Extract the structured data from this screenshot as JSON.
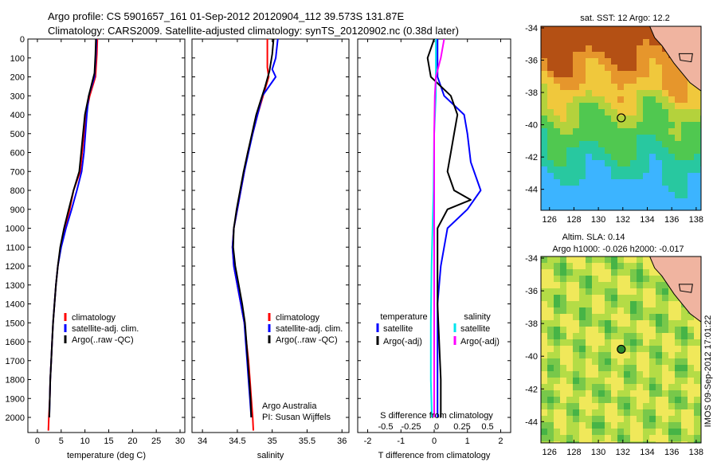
{
  "title_line1": "Argo profile: CS 5901657_161 01-Sep-2012 20120904_112 39.573S 131.87E",
  "title_line2": "Climatology: CARS2009. Satellite-adjusted climatology: synTS_20120902.nc (0.38d later)",
  "side_stamp": "IMOS 09-Sep-2012 17:01:22",
  "chart_data": [
    {
      "type": "line",
      "xlabel": "temperature (deg C)",
      "ylabel": "",
      "xlim": [
        -2,
        31
      ],
      "ylim": [
        2080,
        0
      ],
      "x_ticks": [
        0,
        5,
        10,
        15,
        20,
        25,
        30
      ],
      "y_ticks": [
        0,
        100,
        200,
        300,
        400,
        500,
        600,
        700,
        800,
        900,
        1000,
        1100,
        1200,
        1300,
        1400,
        1500,
        1600,
        1700,
        1800,
        1900,
        2000
      ],
      "legend": [
        "climatology",
        "satellite-adj. clim.",
        "Argo(..raw -QC)"
      ],
      "legend_placement": "lower-right",
      "series": [
        {
          "name": "climatology",
          "color": "#ff0000",
          "points": [
            [
              12.6,
              0
            ],
            [
              12.5,
              80
            ],
            [
              12.2,
              200
            ],
            [
              11,
              300
            ],
            [
              10.2,
              400
            ],
            [
              9.8,
              500
            ],
            [
              9.4,
              600
            ],
            [
              9,
              700
            ],
            [
              7.6,
              800
            ],
            [
              6.8,
              900
            ],
            [
              5.8,
              1000
            ],
            [
              4.9,
              1100
            ],
            [
              4.3,
              1200
            ],
            [
              3.9,
              1300
            ],
            [
              3.6,
              1400
            ],
            [
              3.3,
              1500
            ],
            [
              3.1,
              1600
            ],
            [
              2.9,
              1700
            ],
            [
              2.7,
              1800
            ],
            [
              2.6,
              1900
            ],
            [
              2.4,
              2000
            ],
            [
              2.3,
              2070
            ]
          ]
        },
        {
          "name": "satellite-adj. clim.",
          "color": "#0000ff",
          "points": [
            [
              12.4,
              0
            ],
            [
              12.3,
              80
            ],
            [
              12,
              200
            ],
            [
              10.8,
              300
            ],
            [
              10.4,
              400
            ],
            [
              10.1,
              500
            ],
            [
              9.8,
              600
            ],
            [
              9.3,
              700
            ],
            [
              8.3,
              800
            ],
            [
              7.2,
              900
            ],
            [
              6,
              1000
            ],
            [
              5,
              1100
            ],
            [
              4.3,
              1200
            ],
            [
              3.9,
              1300
            ],
            [
              3.6,
              1400
            ],
            [
              3.3,
              1500
            ],
            [
              3.1,
              1600
            ],
            [
              2.9,
              1700
            ],
            [
              2.7,
              1800
            ],
            [
              2.6,
              1900
            ],
            [
              2.5,
              2000
            ]
          ]
        },
        {
          "name": "Argo(..raw -QC)",
          "color": "#000000",
          "points": [
            [
              12.3,
              0
            ],
            [
              12.2,
              80
            ],
            [
              12,
              180
            ],
            [
              10.8,
              300
            ],
            [
              10,
              400
            ],
            [
              9.6,
              500
            ],
            [
              9.2,
              600
            ],
            [
              8.8,
              700
            ],
            [
              7.6,
              800
            ],
            [
              6.6,
              900
            ],
            [
              5.6,
              1000
            ],
            [
              4.8,
              1100
            ],
            [
              4.3,
              1200
            ],
            [
              3.9,
              1300
            ],
            [
              3.6,
              1400
            ],
            [
              3.3,
              1500
            ],
            [
              3.1,
              1600
            ],
            [
              2.9,
              1700
            ],
            [
              2.7,
              1800
            ],
            [
              2.6,
              1900
            ],
            [
              2.5,
              2000
            ]
          ]
        }
      ]
    },
    {
      "type": "line",
      "xlabel": "salinity",
      "xlim": [
        33.85,
        36.1
      ],
      "ylim": [
        2080,
        0
      ],
      "x_ticks": [
        34,
        34.5,
        35,
        35.5,
        36
      ],
      "legend": [
        "climatology",
        "satellite-adj. clim.",
        "Argo(..raw -QC)"
      ],
      "legend_placement": "lower-right",
      "annotation": [
        "Argo Australia",
        "PI: Susan Wijffels"
      ],
      "series": [
        {
          "name": "climatology",
          "color": "#ff0000",
          "points": [
            [
              34.93,
              0
            ],
            [
              34.93,
              150
            ],
            [
              34.95,
              200
            ],
            [
              34.87,
              300
            ],
            [
              34.79,
              400
            ],
            [
              34.72,
              500
            ],
            [
              34.65,
              600
            ],
            [
              34.6,
              700
            ],
            [
              34.55,
              800
            ],
            [
              34.5,
              900
            ],
            [
              34.45,
              1000
            ],
            [
              34.43,
              1100
            ],
            [
              34.45,
              1200
            ],
            [
              34.5,
              1300
            ],
            [
              34.55,
              1400
            ],
            [
              34.6,
              1500
            ],
            [
              34.63,
              1600
            ],
            [
              34.66,
              1700
            ],
            [
              34.68,
              1800
            ],
            [
              34.7,
              1900
            ],
            [
              34.72,
              2000
            ],
            [
              34.73,
              2070
            ]
          ]
        },
        {
          "name": "satellite-adj. clim.",
          "color": "#0000ff",
          "points": [
            [
              35.08,
              0
            ],
            [
              35.05,
              100
            ],
            [
              35,
              160
            ],
            [
              35.05,
              200
            ],
            [
              34.86,
              300
            ],
            [
              34.79,
              400
            ],
            [
              34.72,
              500
            ],
            [
              34.66,
              600
            ],
            [
              34.6,
              700
            ],
            [
              34.55,
              800
            ],
            [
              34.5,
              900
            ],
            [
              34.45,
              1000
            ],
            [
              34.43,
              1100
            ],
            [
              34.45,
              1200
            ],
            [
              34.5,
              1300
            ],
            [
              34.55,
              1400
            ],
            [
              34.6,
              1500
            ],
            [
              34.62,
              1600
            ],
            [
              34.64,
              1700
            ],
            [
              34.66,
              1800
            ],
            [
              34.68,
              1900
            ],
            [
              34.7,
              2000
            ]
          ]
        },
        {
          "name": "Argo(..raw -QC)",
          "color": "#000000",
          "points": [
            [
              35.02,
              0
            ],
            [
              35.0,
              80
            ],
            [
              34.96,
              170
            ],
            [
              34.9,
              250
            ],
            [
              34.83,
              330
            ],
            [
              34.77,
              400
            ],
            [
              34.71,
              500
            ],
            [
              34.65,
              600
            ],
            [
              34.59,
              700
            ],
            [
              34.54,
              800
            ],
            [
              34.49,
              900
            ],
            [
              34.45,
              1000
            ],
            [
              34.44,
              1100
            ],
            [
              34.47,
              1200
            ],
            [
              34.52,
              1300
            ],
            [
              34.57,
              1400
            ],
            [
              34.61,
              1500
            ],
            [
              34.63,
              1600
            ],
            [
              34.65,
              1700
            ],
            [
              34.67,
              1800
            ],
            [
              34.69,
              1900
            ],
            [
              34.7,
              2000
            ]
          ]
        }
      ]
    },
    {
      "type": "line",
      "xlabel": "T difference from climatology",
      "xlabel_top": "S difference from climatology",
      "xlim": [
        -2.3,
        2.3
      ],
      "ylim": [
        2080,
        0
      ],
      "x_ticks": [
        -2,
        -1,
        0,
        1,
        2
      ],
      "x_ticks_top": [
        -0.5,
        -0.25,
        0,
        0.25,
        0.5
      ],
      "legend_groups": [
        {
          "header": "temperature",
          "items": [
            {
              "label": "satellite",
              "color": "#0000ff"
            },
            {
              "label": "Argo(-adj)",
              "color": "#000000"
            }
          ]
        },
        {
          "header": "salinity",
          "items": [
            {
              "label": "satellite",
              "color": "#00e5ee"
            },
            {
              "label": "Argo(-adj)",
              "color": "#ff00ff"
            }
          ]
        }
      ],
      "series": [
        {
          "name": "temperature satellite",
          "color": "#0000ff",
          "points": [
            [
              0.1,
              0
            ],
            [
              0.1,
              200
            ],
            [
              0.3,
              300
            ],
            [
              0.9,
              400
            ],
            [
              1,
              500
            ],
            [
              1.1,
              650
            ],
            [
              1.4,
              800
            ],
            [
              1,
              900
            ],
            [
              0.4,
              1000
            ],
            [
              0.2,
              1200
            ],
            [
              0.1,
              1400
            ],
            [
              0.1,
              1800
            ],
            [
              0.1,
              2000
            ]
          ]
        },
        {
          "name": "temperature Argo(-adj)",
          "color": "#000000",
          "points": [
            [
              0,
              0
            ],
            [
              -0.2,
              100
            ],
            [
              -0.1,
              200
            ],
            [
              0.5,
              300
            ],
            [
              0.7,
              400
            ],
            [
              0.6,
              500
            ],
            [
              0.5,
              600
            ],
            [
              0.4,
              700
            ],
            [
              0.6,
              800
            ],
            [
              1.1,
              850
            ],
            [
              0.4,
              900
            ],
            [
              0.1,
              1000
            ],
            [
              0.1,
              1400
            ],
            [
              0.2,
              1800
            ],
            [
              0.2,
              2000
            ]
          ]
        },
        {
          "name": "salinity satellite",
          "color": "#00e5ee",
          "points": [
            [
              0.05,
              0
            ],
            [
              0.05,
              300
            ],
            [
              0,
              500
            ],
            [
              -0.02,
              800
            ],
            [
              -0.05,
              1000
            ],
            [
              -0.08,
              1200
            ],
            [
              -0.1,
              1500
            ],
            [
              -0.1,
              1800
            ],
            [
              -0.07,
              2000
            ]
          ]
        },
        {
          "name": "salinity Argo(-adj)",
          "color": "#ff00ff",
          "points": [
            [
              0.3,
              0
            ],
            [
              0.2,
              100
            ],
            [
              0.05,
              200
            ],
            [
              0.02,
              300
            ],
            [
              0,
              500
            ],
            [
              0,
              800
            ],
            [
              0,
              1100
            ],
            [
              0,
              1500
            ],
            [
              0,
              1800
            ],
            [
              0,
              2000
            ]
          ]
        }
      ]
    },
    {
      "type": "heatmap",
      "title": "sat. SST: 12  Argo: 12.2",
      "xlim": [
        125.3,
        138.4
      ],
      "ylim": [
        -45.3,
        -33.9
      ],
      "x_ticks": [
        126,
        128,
        130,
        132,
        134,
        136,
        138
      ],
      "y_ticks": [
        -34,
        -36,
        -38,
        -40,
        -42,
        -44
      ],
      "marker": {
        "lon": 131.87,
        "lat": -39.573
      }
    },
    {
      "type": "heatmap",
      "title_line1": "Altim. SLA: 0.14",
      "title_line2": "Argo h1000: -0.026 h2000: -0.017",
      "xlim": [
        125.3,
        138.4
      ],
      "ylim": [
        -45.3,
        -33.9
      ],
      "x_ticks": [
        126,
        128,
        130,
        132,
        134,
        136,
        138
      ],
      "y_ticks": [
        -34,
        -36,
        -38,
        -40,
        -42,
        -44
      ],
      "marker": {
        "lon": 131.87,
        "lat": -39.573
      }
    }
  ]
}
